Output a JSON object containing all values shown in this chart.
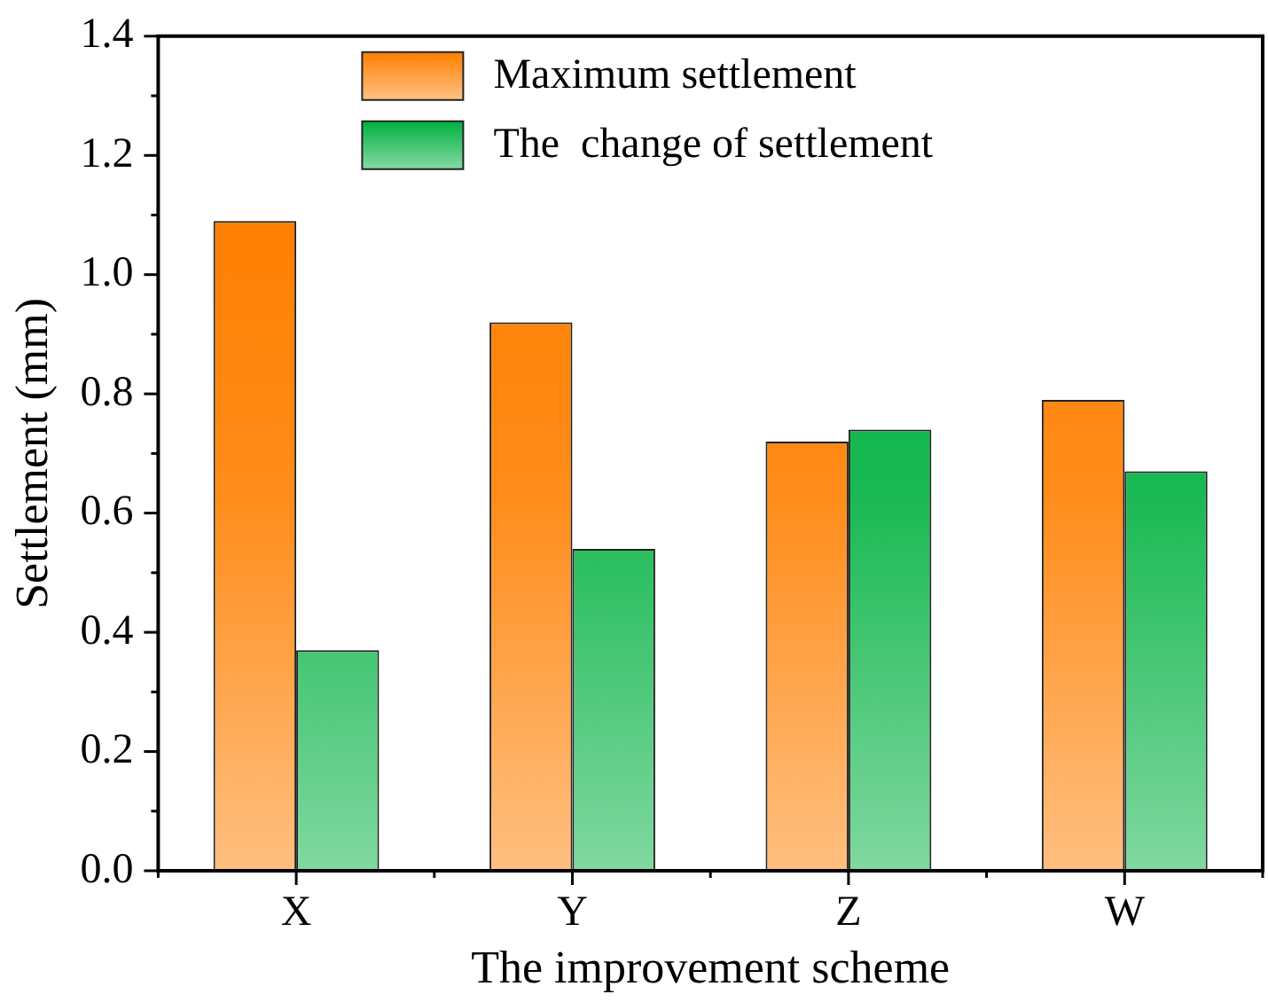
{
  "chart_data": {
    "type": "bar",
    "xlabel": "The improvement scheme",
    "ylabel": "Settlement (mm)",
    "categories": [
      "X",
      "Y",
      "Z",
      "W"
    ],
    "series": [
      {
        "name": "Maximum settlement",
        "color": "#ff7f00",
        "values": [
          1.09,
          0.92,
          0.72,
          0.79
        ]
      },
      {
        "name": "The  change of settlement",
        "color": "#00b140",
        "values": [
          0.37,
          0.54,
          0.74,
          0.67
        ]
      }
    ],
    "ylim": [
      0,
      1.4
    ],
    "yticks": [
      {
        "value": 0,
        "label": "0.0"
      },
      0.2,
      0.4,
      0.6,
      0.8,
      {
        "value": 1,
        "label": "1.0"
      },
      1.2,
      1.4
    ],
    "grid": false,
    "legend": "top"
  }
}
